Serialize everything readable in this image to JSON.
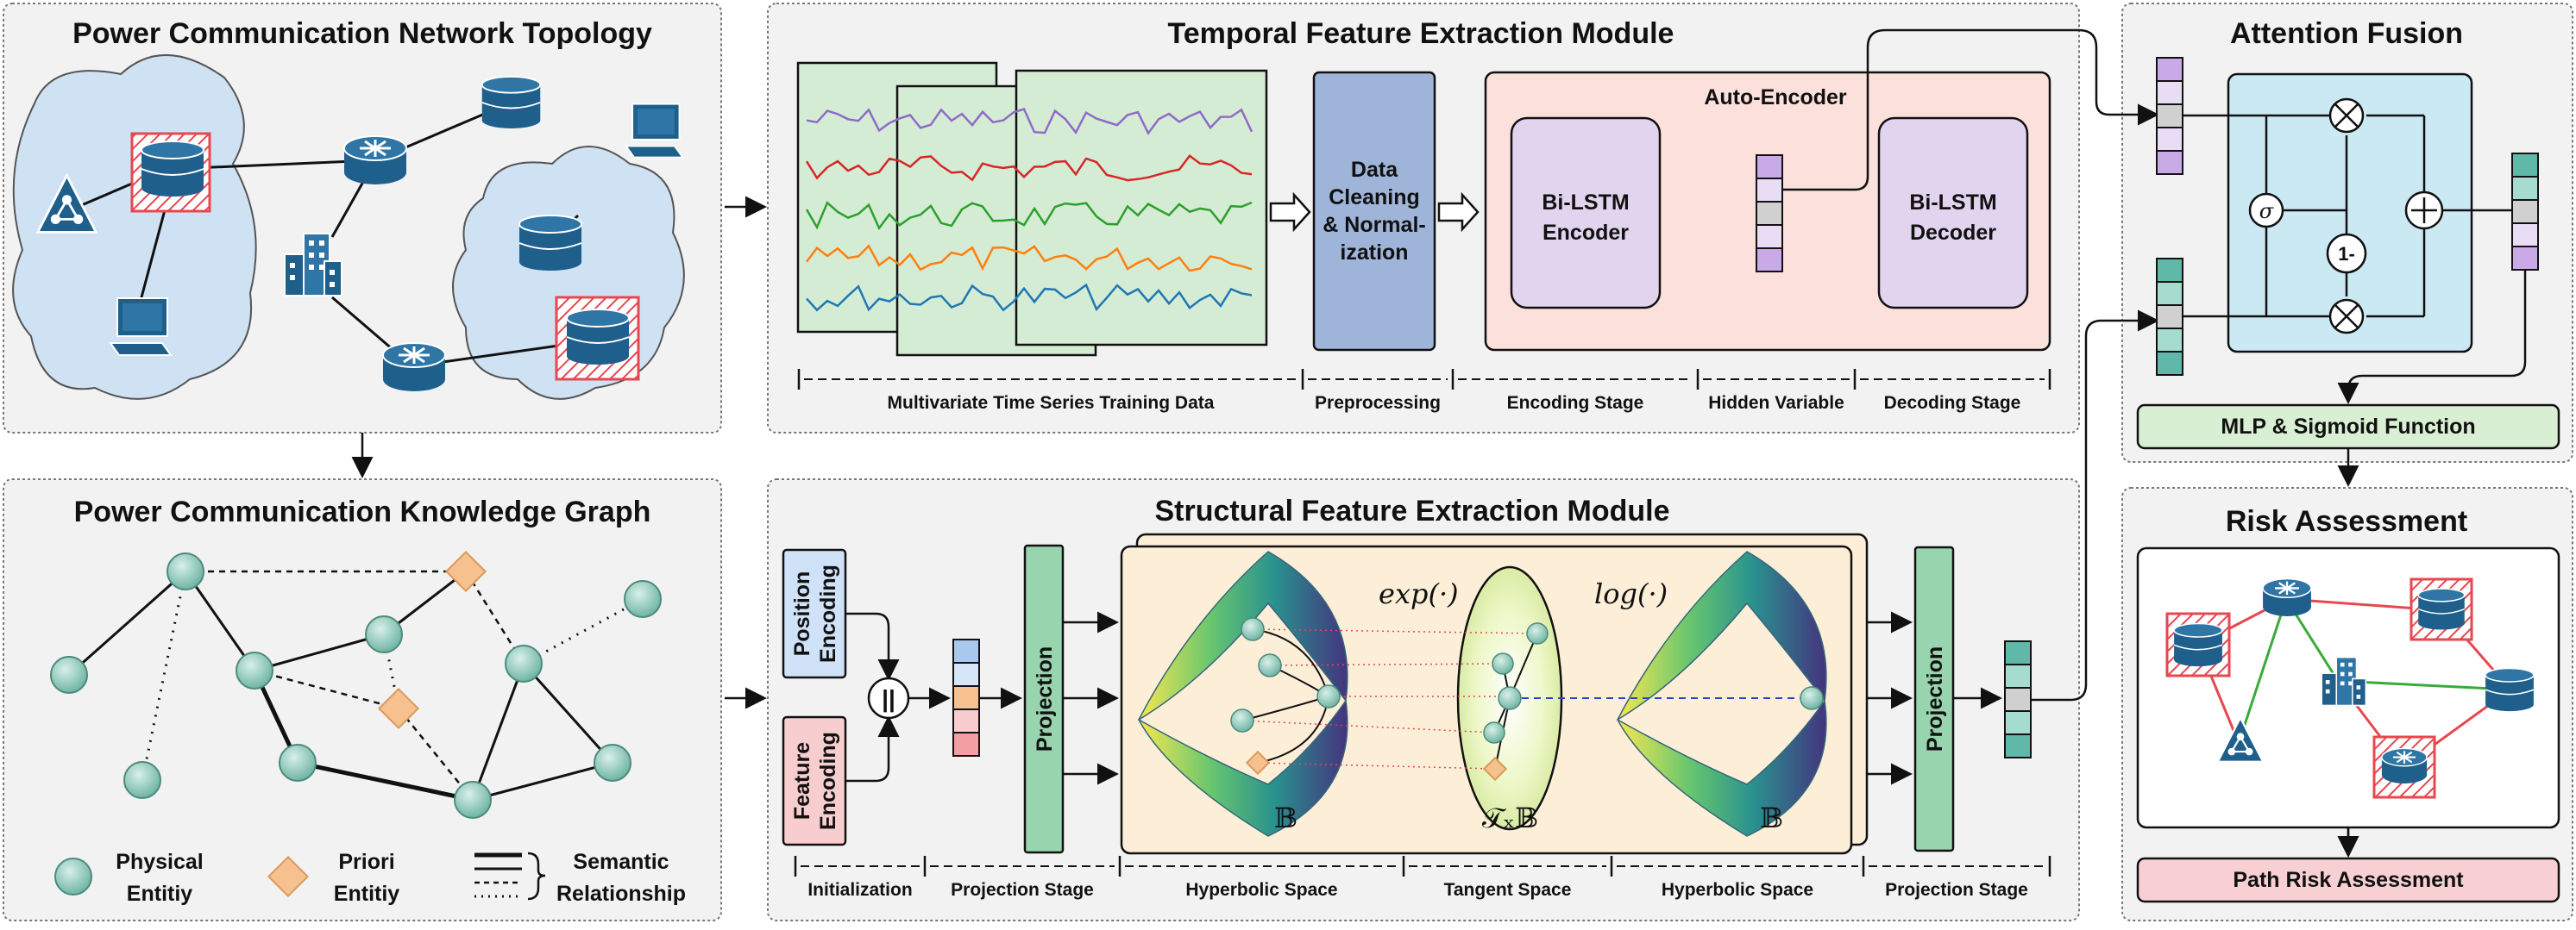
{
  "panels": {
    "topology": {
      "title": "Power Communication Network Topology"
    },
    "knowledge_graph": {
      "title": "Power Communication Knowledge Graph",
      "legend": {
        "physical_l1": "Physical",
        "physical_l2": "Entitiy",
        "priori_l1": "Priori",
        "priori_l2": "Entitiy",
        "semantic_l1": "Semantic",
        "semantic_l2": "Relationship"
      }
    },
    "temporal": {
      "title": "Temporal Feature Extraction Module",
      "preprocess": [
        "Data",
        "Cleaning",
        "& Normal-",
        "ization"
      ],
      "auto_encoder": "Auto-Encoder",
      "encoder": [
        "Bi-LSTM",
        "Encoder"
      ],
      "decoder": [
        "Bi-LSTM",
        "Decoder"
      ],
      "stages": [
        "Multivariate Time Series Training Data",
        "Preprocessing",
        "Encoding Stage",
        "Hidden Variable",
        "Decoding Stage"
      ]
    },
    "structural": {
      "title": "Structural Feature Extraction Module",
      "position_encoding": [
        "Position",
        "Encoding"
      ],
      "feature_encoding": [
        "Feature",
        "Encoding"
      ],
      "concat": "||",
      "projection": "Projection",
      "exp": "exp(·)",
      "log": "log(·)",
      "B": "𝔹",
      "TxB": "𝒯ₓ𝔹",
      "stages": [
        "Initialization",
        "Projection Stage",
        "Hyperbolic Space",
        "Tangent Space",
        "Hyperbolic Space",
        "Projection Stage"
      ]
    },
    "attention": {
      "title": "Attention Fusion",
      "sigma": "σ",
      "one_minus": "1-",
      "mlp": "MLP & Sigmoid Function"
    },
    "risk": {
      "title": "Risk Assessment",
      "path": "Path Risk Assessment"
    }
  },
  "colors": {
    "panel_bg": "#f2f2f2",
    "cloud": "#cfe2f3",
    "device": "#1f5f8b",
    "hatch": "#e8474f",
    "node": "#7fc0b0",
    "priori": "#f6c08f",
    "series_bg": "#d5ecd4",
    "preprocess": "#9fb4d9",
    "auto_enc": "#fbe0dc",
    "lstm": "#e2d4ee",
    "proj": "#98d4ae",
    "hyper_bg": "#fdeed8",
    "attn_bg": "#cbe9f3",
    "mlp": "#d9efd3",
    "path": "#f8d0d3",
    "pos_enc": "#cfe2f8",
    "feat_enc": "#f8cdd0"
  }
}
